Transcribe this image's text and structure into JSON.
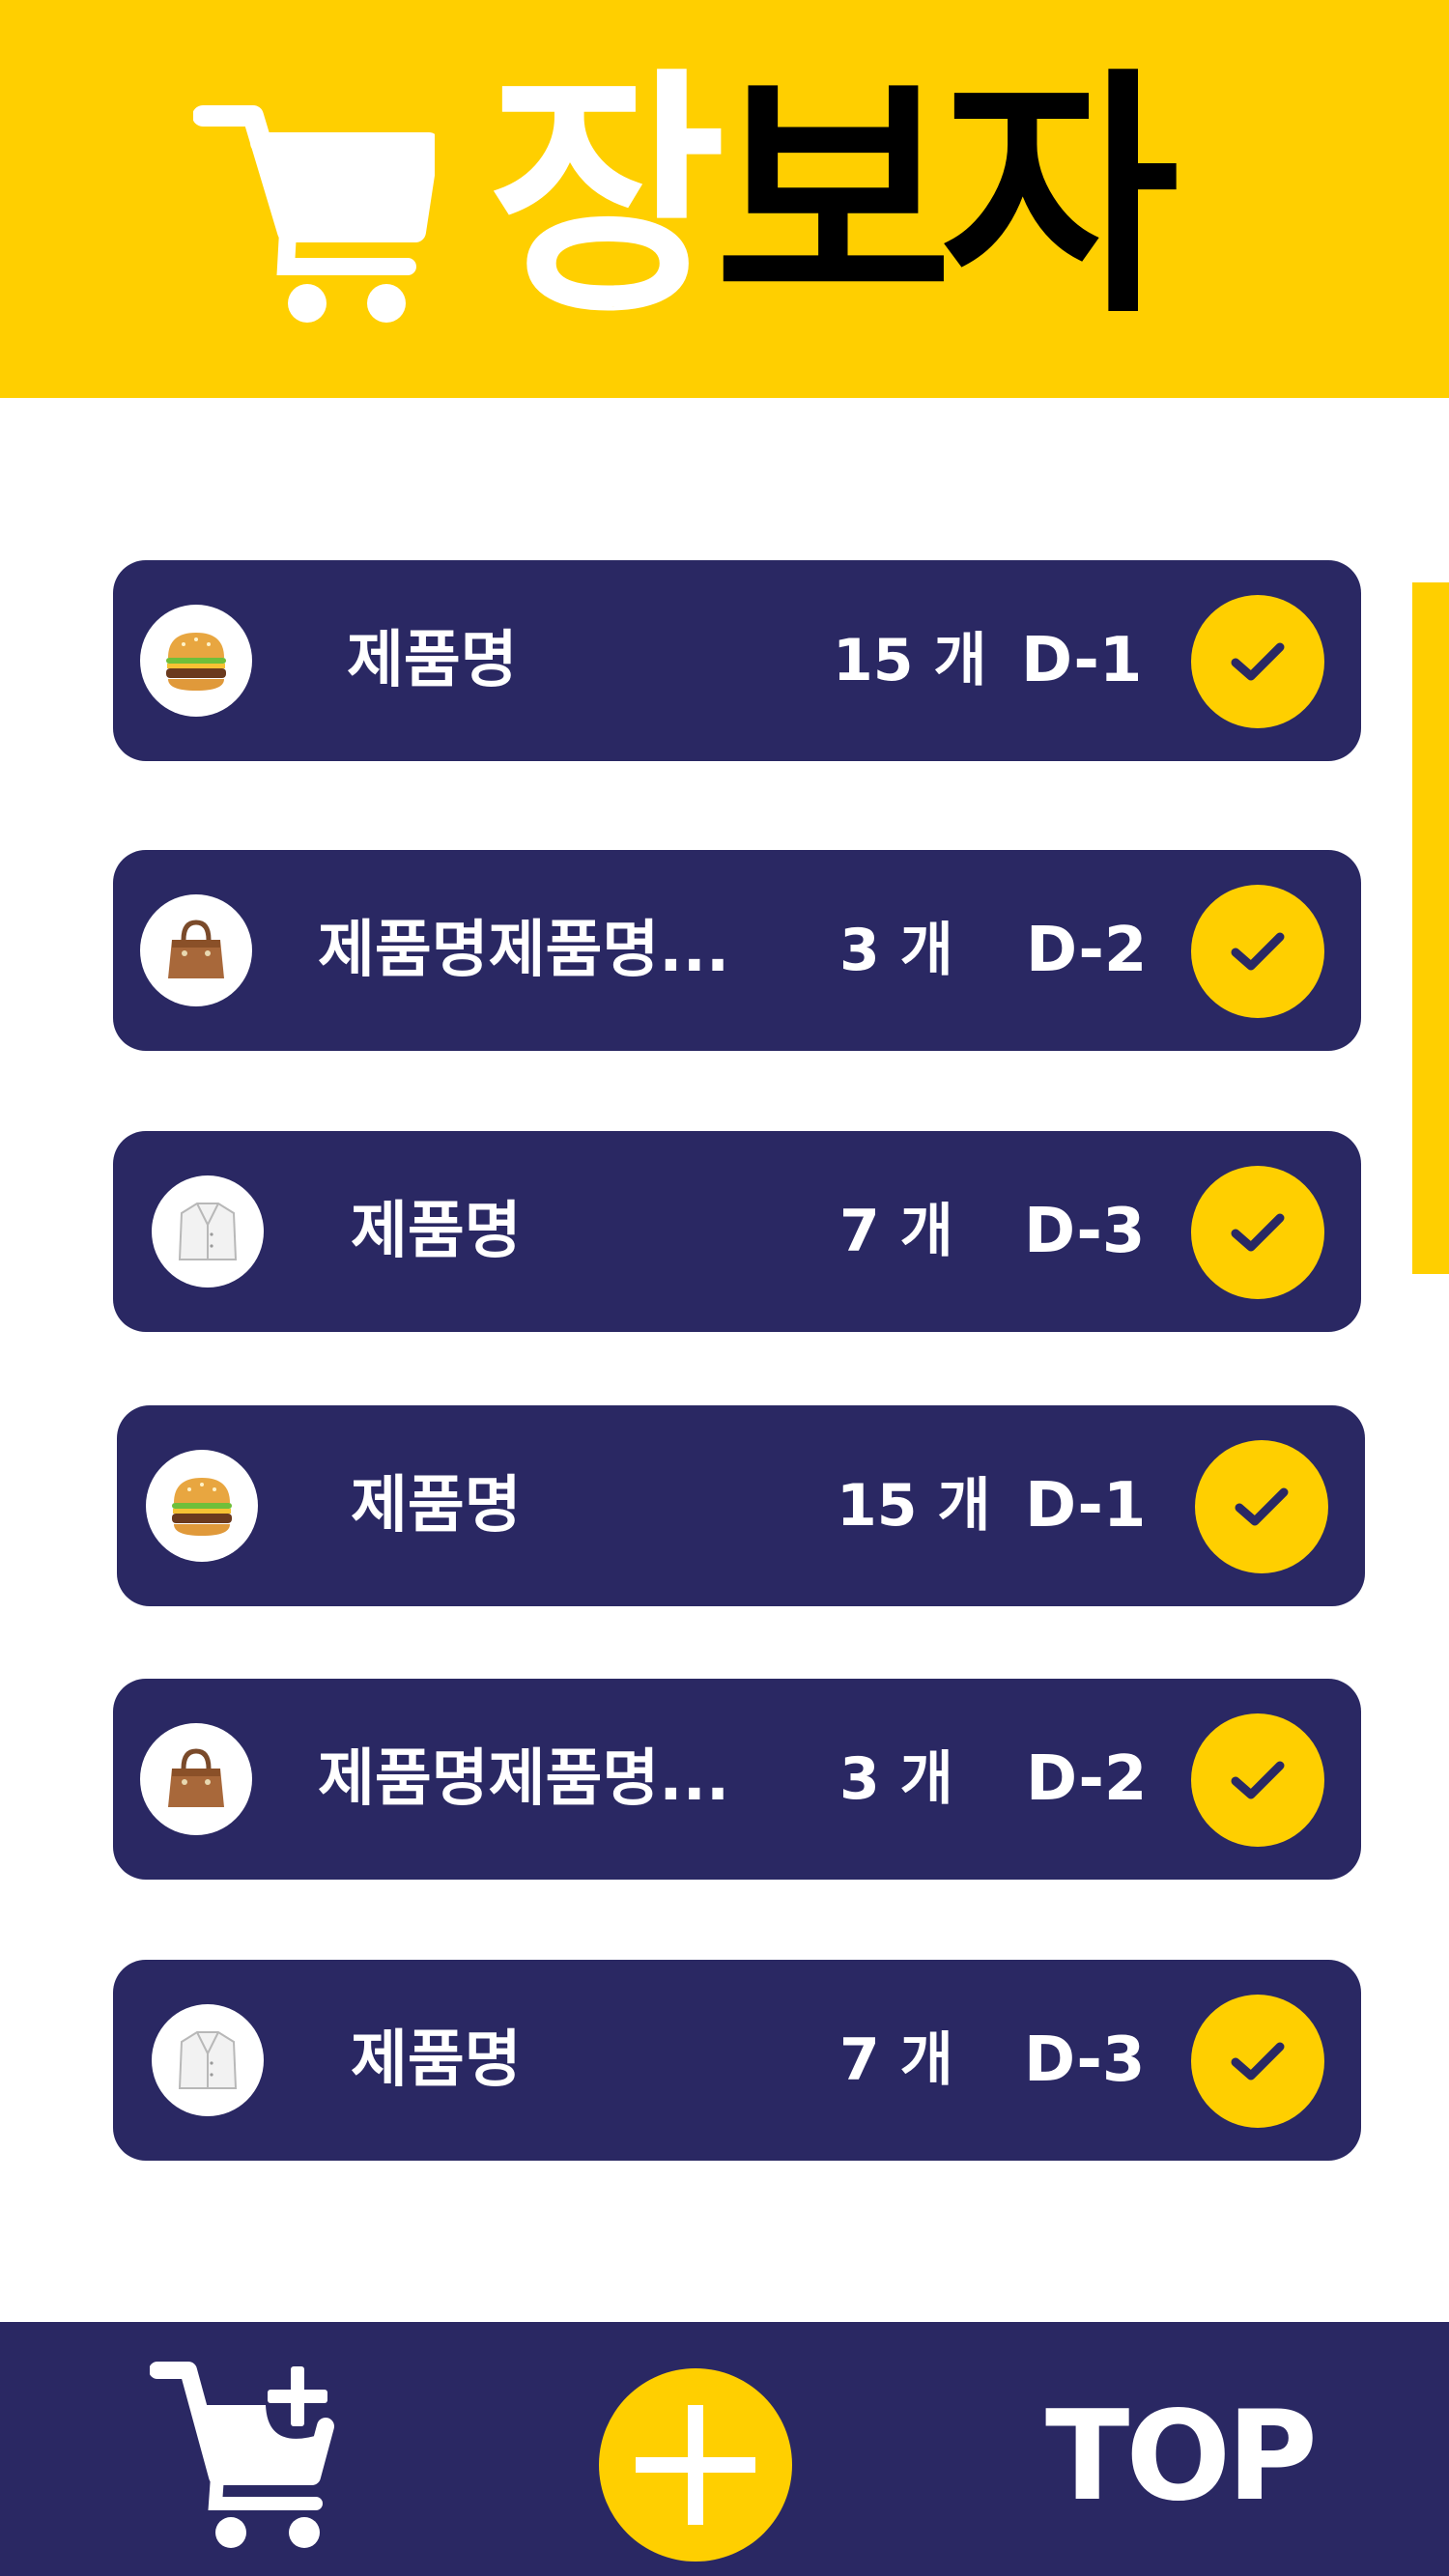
{
  "header": {
    "title_part1": "장",
    "title_part2": "보자"
  },
  "colors": {
    "brand_yellow": "#FFCF00",
    "navy": "#2A2863",
    "white": "#FFFFFF"
  },
  "items": [
    {
      "icon": "burger-icon",
      "name": "제품명",
      "qty": "15 개",
      "dday": "D-1"
    },
    {
      "icon": "handbag-icon",
      "name": "제품명제품명...",
      "qty": "3 개",
      "dday": "D-2"
    },
    {
      "icon": "coat-icon",
      "name": "제품명",
      "qty": "7 개",
      "dday": "D-3"
    },
    {
      "icon": "burger-icon",
      "name": "제품명",
      "qty": "15 개",
      "dday": "D-1"
    },
    {
      "icon": "handbag-icon",
      "name": "제품명제품명...",
      "qty": "3 개",
      "dday": "D-2"
    },
    {
      "icon": "coat-icon",
      "name": "제품명",
      "qty": "7 개",
      "dday": "D-3"
    }
  ],
  "bottom_bar": {
    "add_cart_icon": "cart-plus-icon",
    "add_icon": "plus-icon",
    "top_label": "TOP"
  }
}
